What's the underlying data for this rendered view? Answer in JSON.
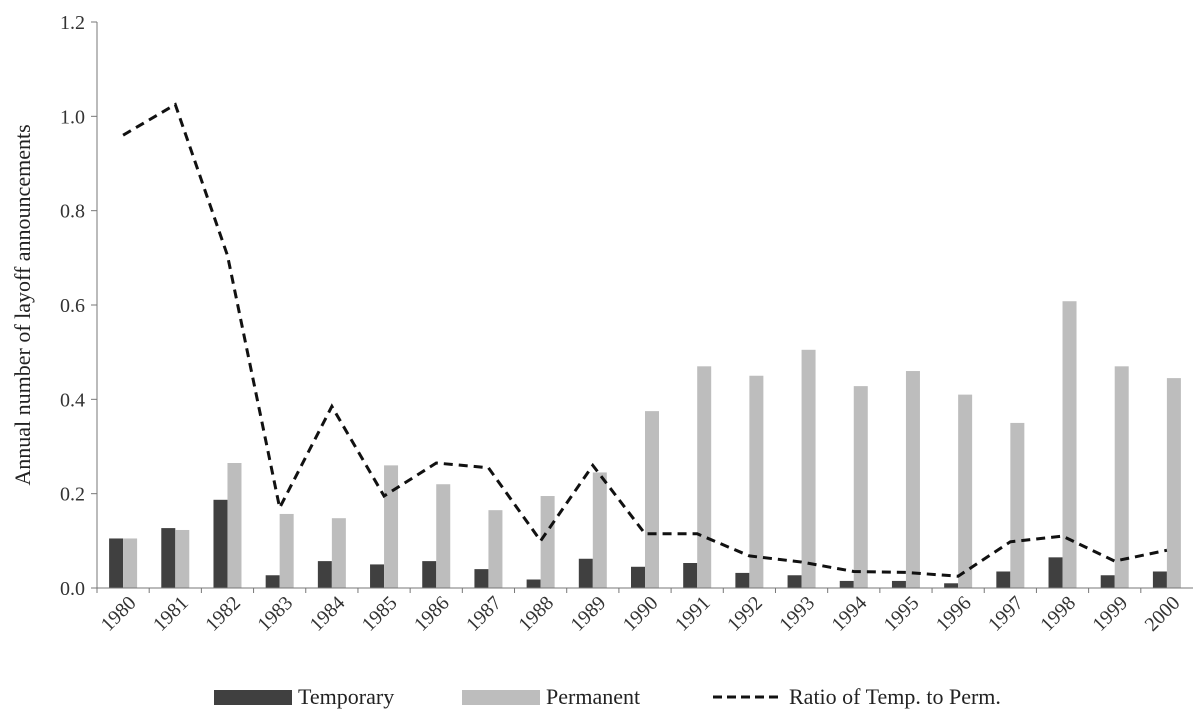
{
  "chart_data": {
    "type": "bar",
    "xlabel": "",
    "ylabel": "Annual number of layoff announcements",
    "ylim": [
      0,
      1.2
    ],
    "yticks": [
      "0.0",
      "0.2",
      "0.4",
      "0.6",
      "0.8",
      "1.0",
      "1.2"
    ],
    "grid": false,
    "legend_position": "bottom",
    "categories": [
      "1980",
      "1981",
      "1982",
      "1983",
      "1984",
      "1985",
      "1986",
      "1987",
      "1988",
      "1989",
      "1990",
      "1991",
      "1992",
      "1993",
      "1994",
      "1995",
      "1996",
      "1997",
      "1998",
      "1999",
      "2000"
    ],
    "series": [
      {
        "name": "Temporary",
        "kind": "bar",
        "color": "#404040",
        "values": [
          0.105,
          0.127,
          0.187,
          0.027,
          0.057,
          0.05,
          0.057,
          0.04,
          0.018,
          0.062,
          0.045,
          0.053,
          0.032,
          0.027,
          0.015,
          0.015,
          0.01,
          0.035,
          0.065,
          0.027,
          0.035
        ]
      },
      {
        "name": "Permanent",
        "kind": "bar",
        "color": "#bdbdbd",
        "values": [
          0.105,
          0.123,
          0.265,
          0.157,
          0.148,
          0.26,
          0.22,
          0.165,
          0.195,
          0.245,
          0.375,
          0.47,
          0.45,
          0.505,
          0.428,
          0.46,
          0.41,
          0.35,
          0.608,
          0.47,
          0.445
        ]
      },
      {
        "name": "Ratio of Temp. to Perm.",
        "kind": "line",
        "style": "dashed",
        "color": "#111111",
        "values": [
          0.96,
          1.025,
          0.705,
          0.17,
          0.385,
          0.195,
          0.265,
          0.255,
          0.1,
          0.26,
          0.115,
          0.115,
          0.068,
          0.055,
          0.035,
          0.033,
          0.025,
          0.098,
          0.11,
          0.057,
          0.08
        ]
      }
    ]
  }
}
